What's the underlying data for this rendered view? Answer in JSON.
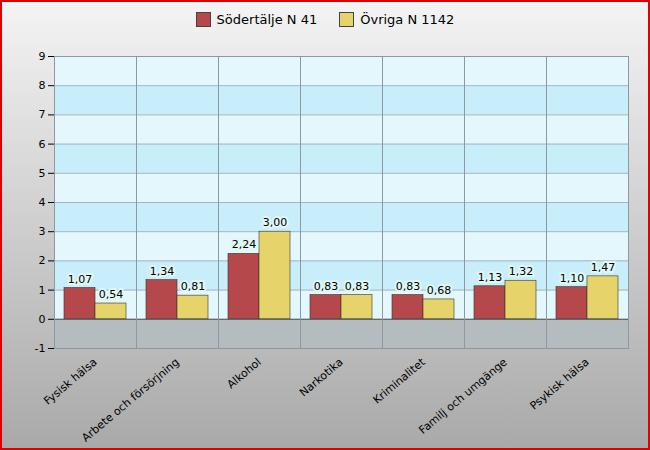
{
  "chart_data": {
    "type": "bar",
    "categories": [
      "Fysisk hälsa",
      "Arbete och försörjning",
      "Alkohol",
      "Narkotika",
      "Kriminalitet",
      "Familj och umgänge",
      "Psykisk hälsa"
    ],
    "series": [
      {
        "name": "Södertälje N 41",
        "color": "#b5484a",
        "values": [
          1.07,
          1.34,
          2.24,
          0.83,
          0.83,
          1.13,
          1.1
        ],
        "value_labels": [
          "1,07",
          "1,34",
          "2,24",
          "0,83",
          "0,83",
          "1,13",
          "1,10"
        ]
      },
      {
        "name": "Övriga N 1142",
        "color": "#e6d46a",
        "values": [
          0.54,
          0.81,
          3.0,
          0.83,
          0.68,
          1.32,
          1.47
        ],
        "value_labels": [
          "0,54",
          "0,81",
          "3,00",
          "0,83",
          "0,68",
          "1,32",
          "1,47"
        ]
      }
    ],
    "ylim": [
      -1,
      9
    ],
    "yticks": [
      -1,
      0,
      1,
      2,
      3,
      4,
      5,
      6,
      7,
      8,
      9
    ],
    "grid": true,
    "data_labels": true,
    "legend": "top"
  }
}
